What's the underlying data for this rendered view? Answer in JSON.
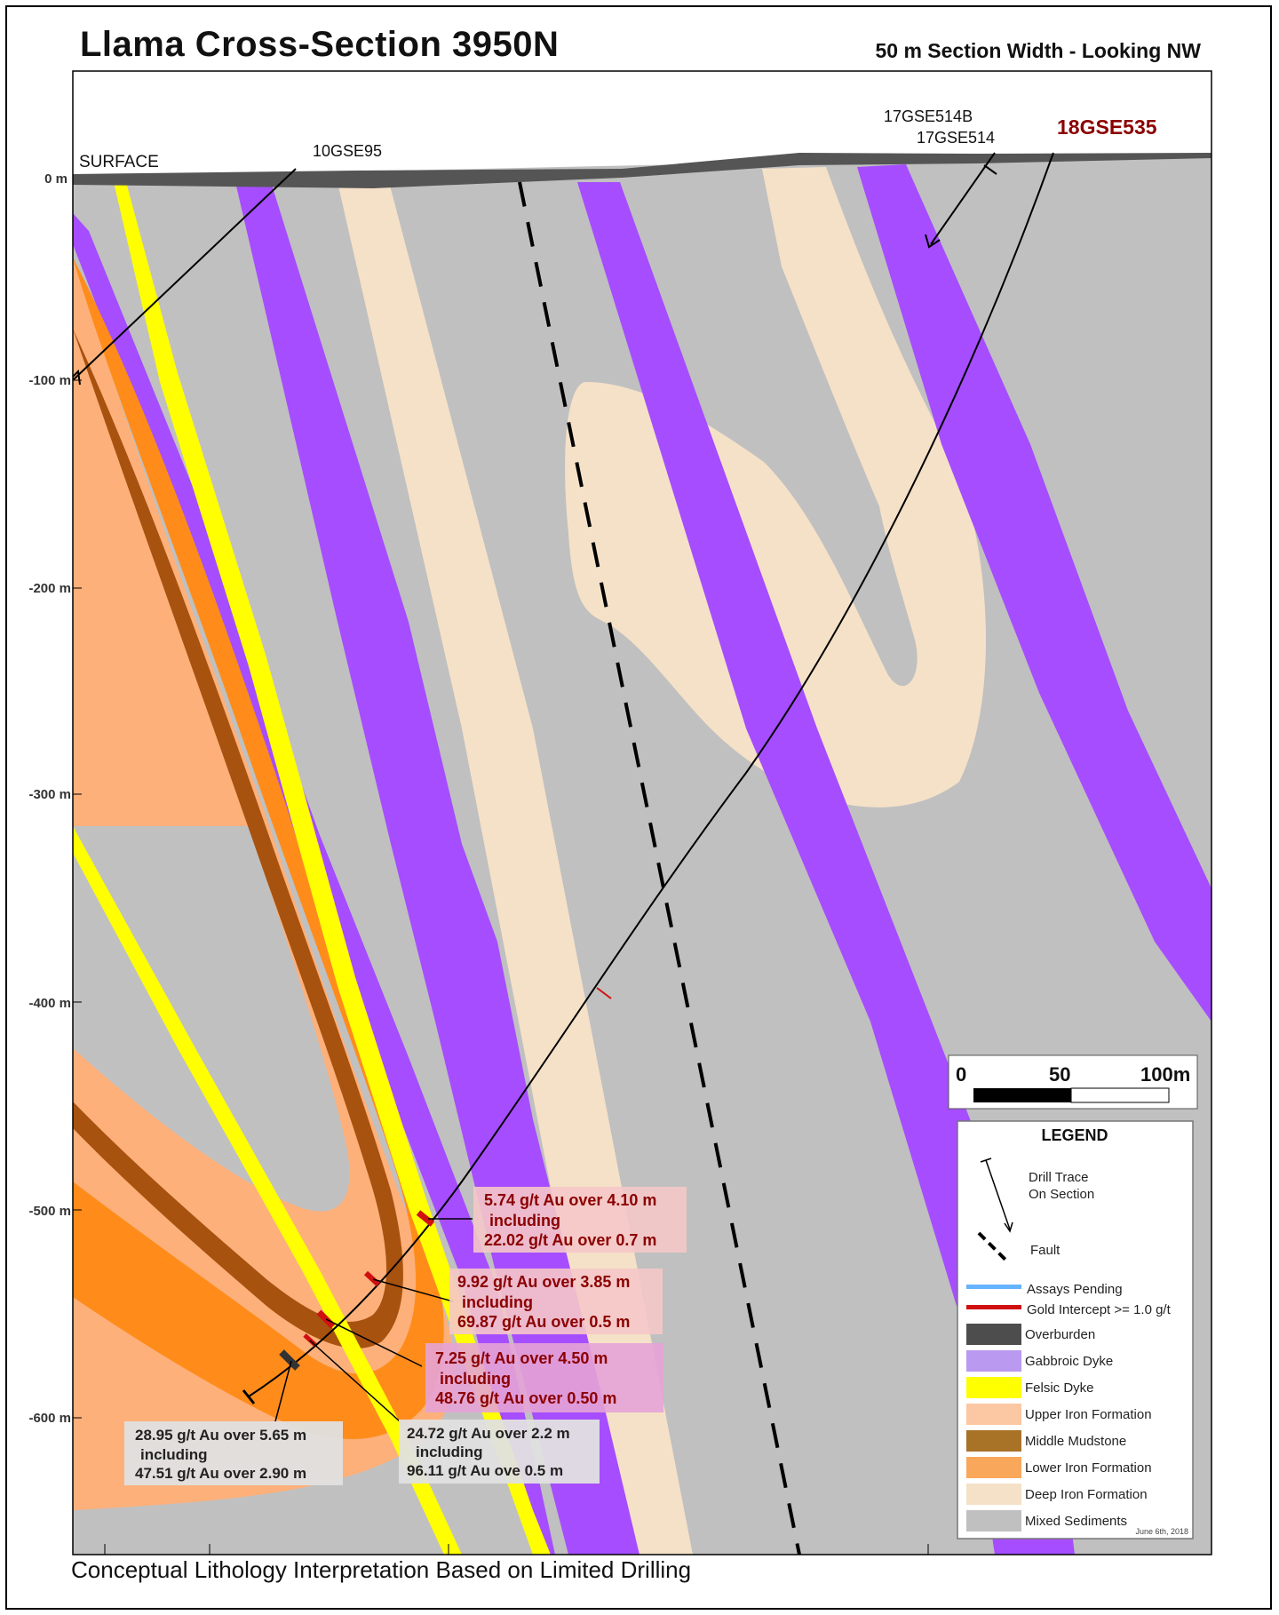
{
  "figure_label": "",
  "title": "Llama Cross-Section 3950N",
  "subtitle": "50 m Section Width - Looking NW",
  "footer": "Conceptual Lithology Interpretation Based on Limited Drilling",
  "surface_label": "SURFACE",
  "depth_axis": [
    "0 m",
    "-100 m",
    "-200 m",
    "-300 m",
    "-400 m",
    "-500 m",
    "-600 m"
  ],
  "holes": {
    "h1": "10GSE95",
    "h2": "17GSE514B",
    "h3": "17GSE514",
    "h4": "18GSE535"
  },
  "scale_bar": {
    "a": "0",
    "b": "50",
    "c": "100m"
  },
  "legend": {
    "title": "LEGEND",
    "drill_trace_1": "Drill Trace",
    "drill_trace_2": "On Section",
    "fault": "Fault",
    "assays_pending": "Assays Pending",
    "gold_intercept": "Gold Intercept >= 1.0 g/t",
    "units": [
      {
        "label": "Overburden",
        "color": "#4d4d4d"
      },
      {
        "label": "Gabbroic Dyke",
        "color": "#b99af0"
      },
      {
        "label": "Felsic Dyke",
        "color": "#ffff00"
      },
      {
        "label": "Upper Iron Formation",
        "color": "#fcc7a3"
      },
      {
        "label": "Middle Mudstone",
        "color": "#a87227"
      },
      {
        "label": "Lower Iron Formation",
        "color": "#f9a75a"
      },
      {
        "label": "Deep Iron Formation",
        "color": "#f5e1c8"
      },
      {
        "label": "Mixed Sediments",
        "color": "#c0c0c0"
      }
    ],
    "date": "June 6th, 2018"
  },
  "colors": {
    "sediments": "#c0c0c0",
    "gabbro": "#a64dff",
    "felsic": "#ffff00",
    "deep_iron": "#f5e1c8",
    "upper_iron": "#fdb07a",
    "lower_iron": "#ff8c1a",
    "mudstone": "#a8520f",
    "overburden": "#555555",
    "intercept": "#d01010",
    "pending": "#66b3ff",
    "callout_red_bg": "#f5c8c8",
    "callout_pink_bg": "#e6a3d6",
    "callout_grey_bg": "#e0e0e0",
    "callout_red_text": "#8b0000"
  },
  "intercepts": [
    {
      "l1": "5.74 g/t Au over 4.10 m",
      "l2": "including",
      "l3": "22.02 g/t Au over 0.7 m"
    },
    {
      "l1": "9.92 g/t Au over 3.85 m",
      "l2": "including",
      "l3": "69.87 g/t Au over 0.5 m"
    },
    {
      "l1": "7.25 g/t Au over 4.50 m",
      "l2": "including",
      "l3": "48.76 g/t Au over 0.50 m"
    },
    {
      "l1": "28.95 g/t Au over 5.65 m",
      "l2": "including",
      "l3": "47.51 g/t Au over 2.90 m"
    },
    {
      "l1": "24.72 g/t Au over 2.2 m",
      "l2": "including",
      "l3": "96.11 g/t Au ove 0.5 m"
    }
  ],
  "clipped_text": "/t"
}
